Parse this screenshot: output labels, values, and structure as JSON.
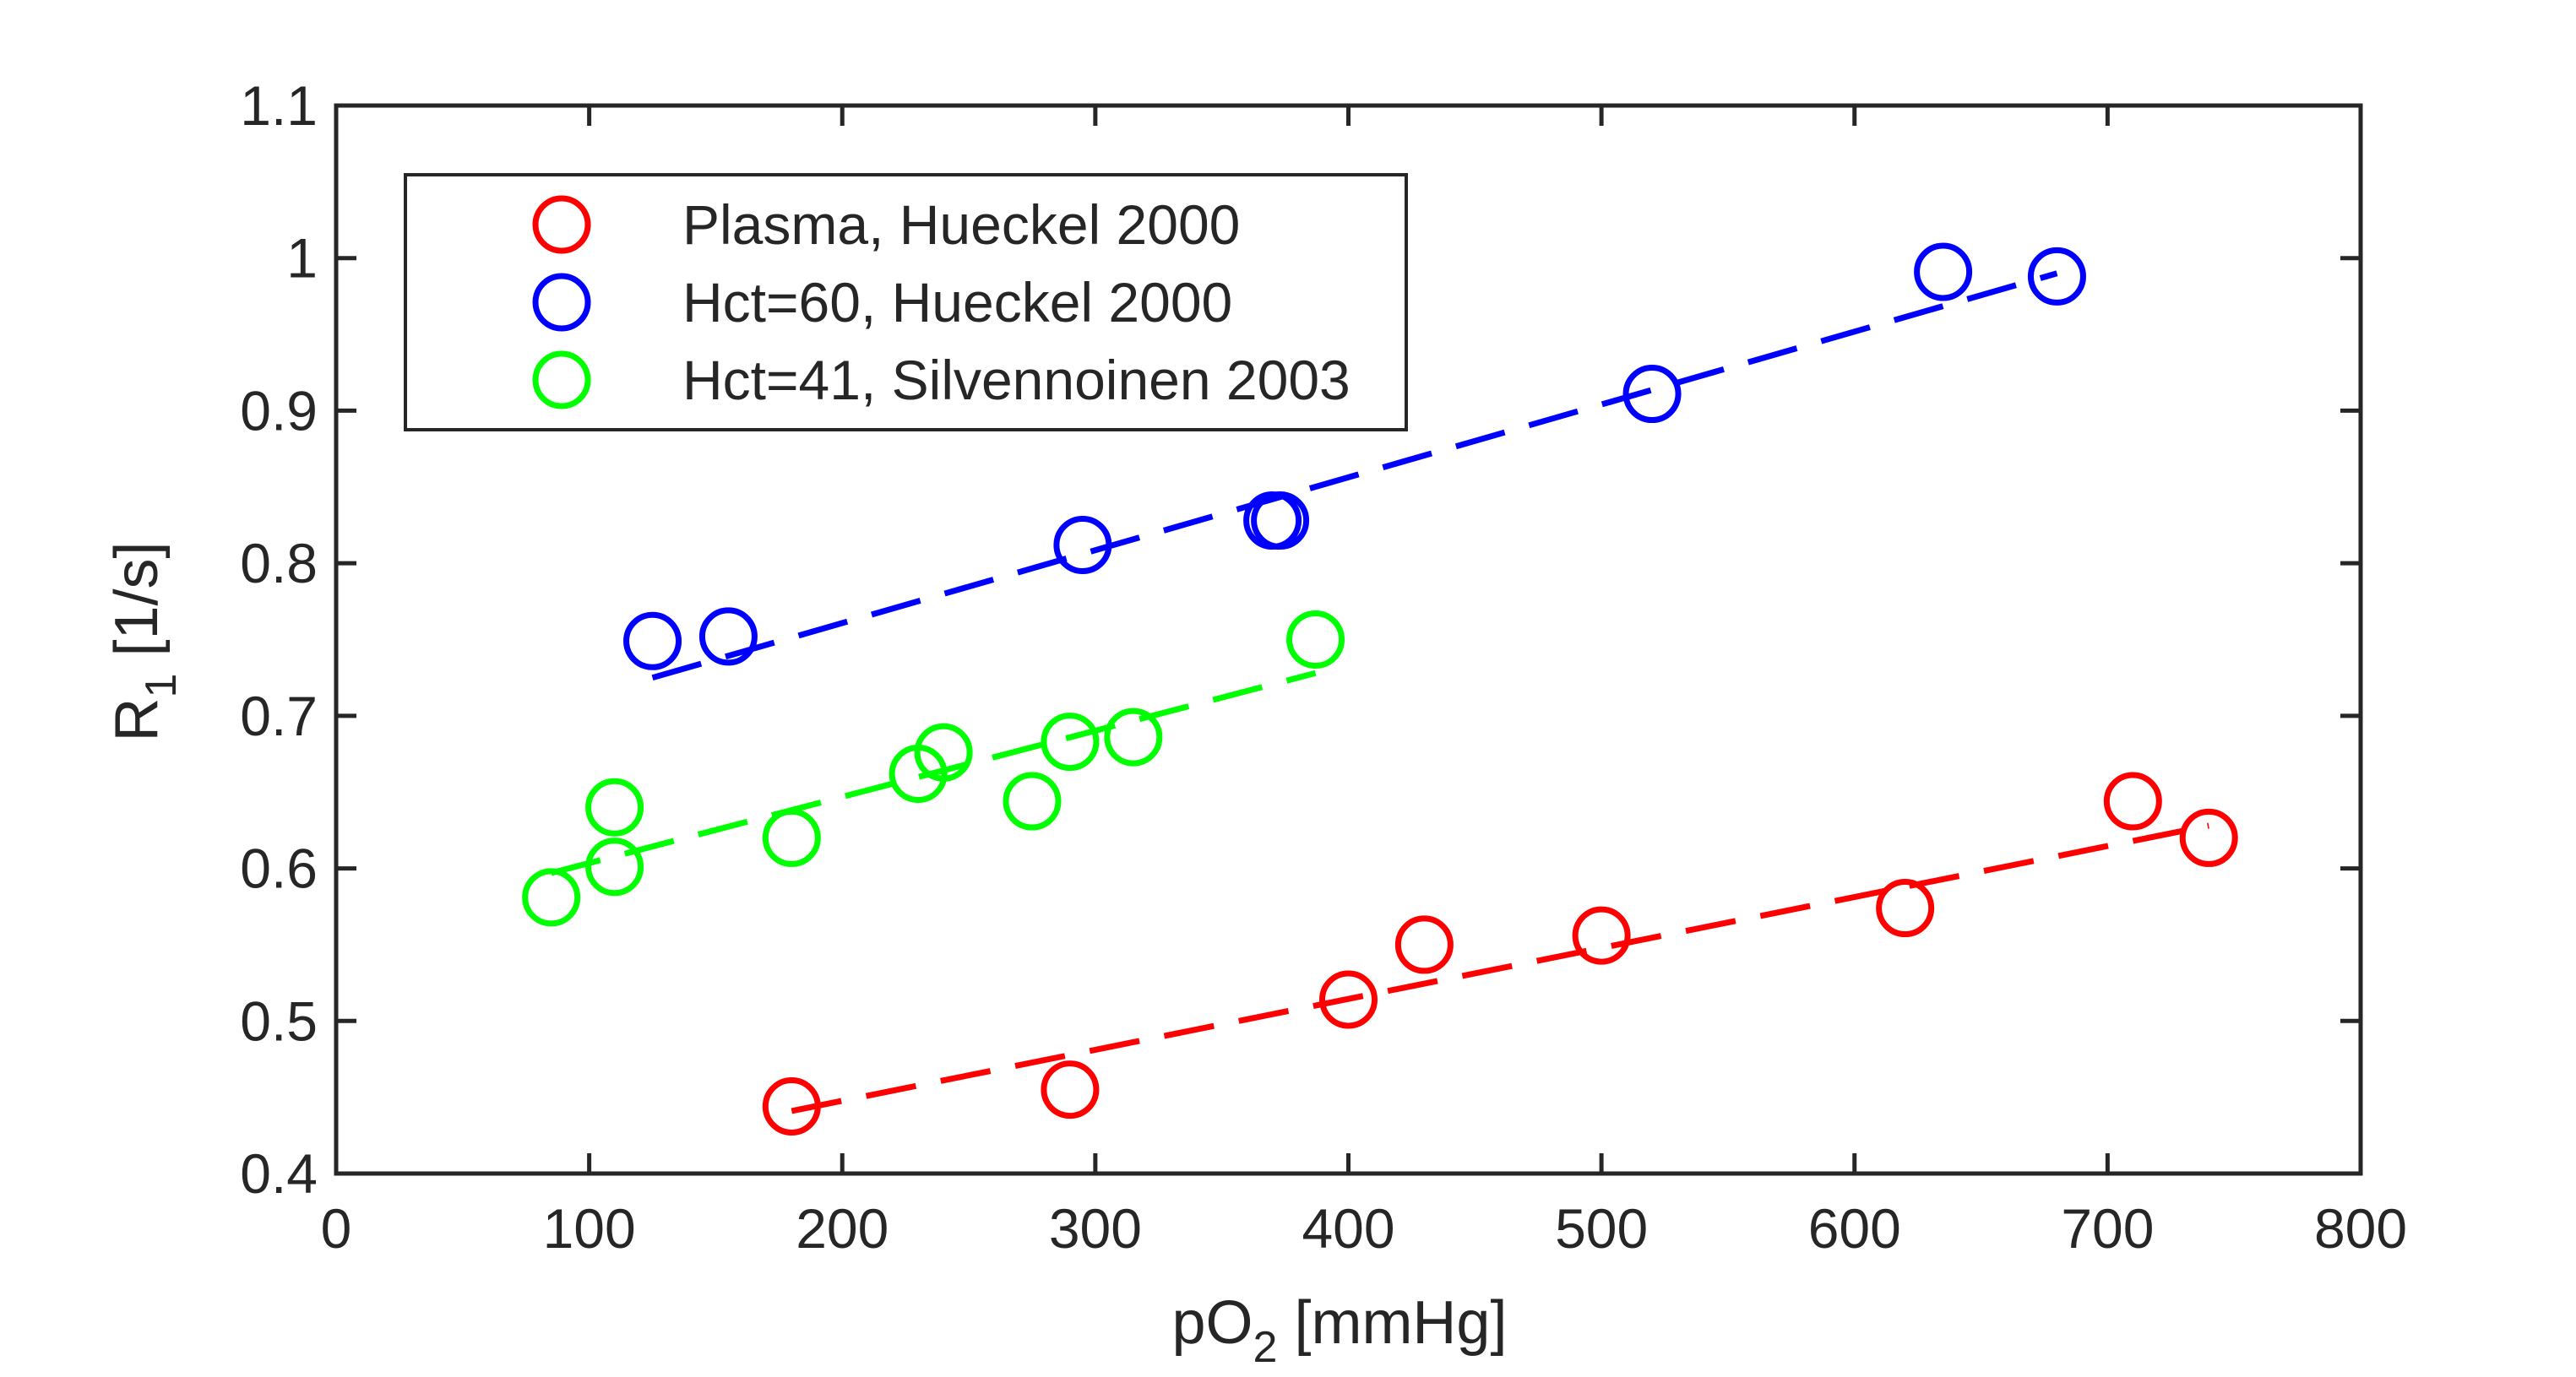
{
  "chart_data": {
    "type": "scatter",
    "xlabel": {
      "main": "pO",
      "sub": "2",
      "rest": " [mmHg]"
    },
    "ylabel": {
      "main": "R",
      "sub": "1",
      "rest": " [1/s]"
    },
    "xlim": [
      0,
      800
    ],
    "ylim": [
      0.4,
      1.1
    ],
    "x_ticks": [
      "0",
      "100",
      "200",
      "300",
      "400",
      "500",
      "600",
      "700",
      "800"
    ],
    "y_ticks": [
      "0.4",
      "0.5",
      "0.6",
      "0.7",
      "0.8",
      "0.9",
      "1",
      "1.1"
    ],
    "legend_position": "top-left",
    "series": [
      {
        "name": "Plasma, Hueckel 2000",
        "color": "#ff0000",
        "x": [
          180,
          290,
          400,
          430,
          500,
          620,
          710,
          740
        ],
        "y": [
          0.444,
          0.455,
          0.514,
          0.55,
          0.556,
          0.574,
          0.644,
          0.62
        ],
        "fit": [
          [
            180,
            0.441
          ],
          [
            740,
            0.628
          ]
        ]
      },
      {
        "name": "Hct=60, Hueckel 2000",
        "color": "#0000ff",
        "x": [
          125,
          155,
          295,
          370,
          373,
          520,
          635,
          680
        ],
        "y": [
          0.749,
          0.752,
          0.812,
          0.828,
          0.828,
          0.911,
          0.991,
          0.988
        ],
        "fit": [
          [
            125,
            0.725
          ],
          [
            680,
            0.99
          ]
        ]
      },
      {
        "name": "Hct=41, Silvennoinen 2003",
        "color": "#00ff00",
        "x": [
          85,
          110,
          110,
          180,
          230,
          240,
          275,
          290,
          315,
          387
        ],
        "y": [
          0.581,
          0.601,
          0.64,
          0.62,
          0.662,
          0.676,
          0.644,
          0.683,
          0.686,
          0.75
        ],
        "fit": [
          [
            85,
            0.597
          ],
          [
            387,
            0.728
          ]
        ]
      }
    ]
  }
}
